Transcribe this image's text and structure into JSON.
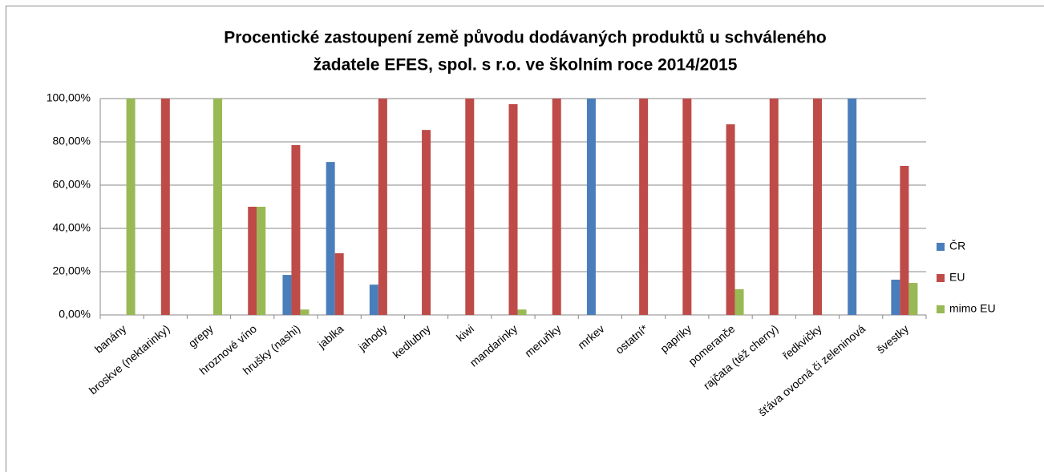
{
  "chart_data": {
    "type": "bar",
    "title": [
      "Procentické zastoupení země původu dodávaných produktů u schváleného",
      "žadatele EFES, spol. s r.o. ve školním roce 2014/2015"
    ],
    "categories": [
      "banány",
      "broskve (nektarinky)",
      "grepy",
      "hroznové víno",
      "hrušky (nashi)",
      "jablka",
      "jahody",
      "kedlubny",
      "kiwi",
      "mandarinky",
      "meruňky",
      "mrkev",
      "ostatní*",
      "papriky",
      "pomeranče",
      "rajčata (též cherry)",
      "ředkvičky",
      "šťáva ovocná či zeleninová",
      "švestky"
    ],
    "series": [
      {
        "name": "ČR",
        "color": "#4a7ebb",
        "values": [
          0,
          0,
          0,
          0,
          18.5,
          70.7,
          14,
          0,
          0,
          0,
          0,
          100,
          0,
          0,
          0,
          0,
          0,
          100,
          16.3
        ]
      },
      {
        "name": "EU",
        "color": "#be4b48",
        "values": [
          0,
          100,
          0,
          50,
          78.5,
          28.5,
          100,
          85.5,
          100,
          97.4,
          100,
          0,
          100,
          100,
          88.1,
          100,
          100,
          0,
          68.9
        ]
      },
      {
        "name": "mimo EU",
        "color": "#98b954",
        "values": [
          100,
          0,
          100,
          50,
          2.5,
          0,
          0,
          0,
          0,
          2.5,
          0,
          0,
          0,
          0,
          11.9,
          0,
          0,
          0,
          14.8
        ]
      }
    ],
    "ylim": [
      0,
      100
    ],
    "yticks": [
      {
        "value": 0,
        "label": "0,00%"
      },
      {
        "value": 20,
        "label": "20,00%"
      },
      {
        "value": 40,
        "label": "40,00%"
      },
      {
        "value": 60,
        "label": "60,00%"
      },
      {
        "value": 80,
        "label": "80,00%"
      },
      {
        "value": 100,
        "label": "100,00%"
      }
    ],
    "grid": true,
    "legend": "right"
  }
}
